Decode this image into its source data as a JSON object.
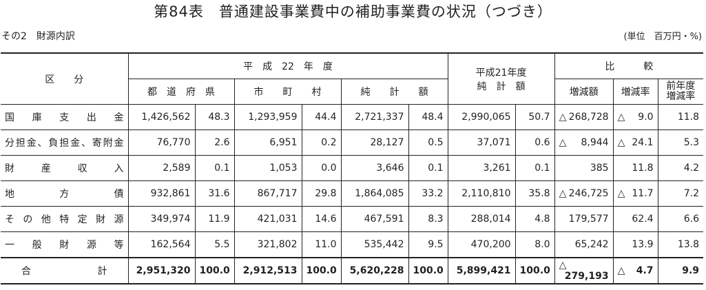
{
  "title": "第84表　普通建設事業費中の補助事業費の状況（つづき）",
  "subtitle": "その2　財源内訳",
  "unit": "(単位　百万円・%)",
  "headers": {
    "category": "区　　分",
    "h22": "平　成　22　年　度",
    "pref": "都　道　府　県",
    "muni": "市　　町　　村",
    "net": "純　　計　　額",
    "h21_line1": "平成21年度",
    "h21_line2": "純　計　額",
    "compare": "比　　　較",
    "diff": "増減額",
    "rate": "増減率",
    "prev_rate_line1": "前年度",
    "prev_rate_line2": "増減率"
  },
  "rows": [
    {
      "label": "国庫支出金",
      "pref_val": "1,426,562",
      "pref_pct": "48.3",
      "muni_val": "1,293,959",
      "muni_pct": "44.4",
      "net_val": "2,721,337",
      "net_pct": "48.4",
      "h21_val": "2,990,065",
      "h21_pct": "50.7",
      "diff_mark": "△",
      "diff_val": "268,728",
      "rate_mark": "△",
      "rate_val": "9.0",
      "prev_rate": "11.8"
    },
    {
      "label": "分担金、負担金、寄附金",
      "pref_val": "76,770",
      "pref_pct": "2.6",
      "muni_val": "6,951",
      "muni_pct": "0.2",
      "net_val": "28,127",
      "net_pct": "0.5",
      "h21_val": "37,071",
      "h21_pct": "0.6",
      "diff_mark": "△",
      "diff_val": "8,944",
      "rate_mark": "△",
      "rate_val": "24.1",
      "prev_rate": "5.3"
    },
    {
      "label": "財産収入",
      "pref_val": "2,589",
      "pref_pct": "0.1",
      "muni_val": "1,053",
      "muni_pct": "0.0",
      "net_val": "3,646",
      "net_pct": "0.1",
      "h21_val": "3,261",
      "h21_pct": "0.1",
      "diff_mark": "",
      "diff_val": "385",
      "rate_mark": "",
      "rate_val": "11.8",
      "prev_rate": "4.2"
    },
    {
      "label": "地方債",
      "pref_val": "932,861",
      "pref_pct": "31.6",
      "muni_val": "867,717",
      "muni_pct": "29.8",
      "net_val": "1,864,085",
      "net_pct": "33.2",
      "h21_val": "2,110,810",
      "h21_pct": "35.8",
      "diff_mark": "△",
      "diff_val": "246,725",
      "rate_mark": "△",
      "rate_val": "11.7",
      "prev_rate": "7.2"
    },
    {
      "label": "その他特定財源",
      "pref_val": "349,974",
      "pref_pct": "11.9",
      "muni_val": "421,031",
      "muni_pct": "14.6",
      "net_val": "467,591",
      "net_pct": "8.3",
      "h21_val": "288,014",
      "h21_pct": "4.8",
      "diff_mark": "",
      "diff_val": "179,577",
      "rate_mark": "",
      "rate_val": "62.4",
      "prev_rate": "6.6"
    },
    {
      "label": "一般財源等",
      "pref_val": "162,564",
      "pref_pct": "5.5",
      "muni_val": "321,802",
      "muni_pct": "11.0",
      "net_val": "535,442",
      "net_pct": "9.5",
      "h21_val": "470,200",
      "h21_pct": "8.0",
      "diff_mark": "",
      "diff_val": "65,242",
      "rate_mark": "",
      "rate_val": "13.9",
      "prev_rate": "13.8"
    }
  ],
  "total": {
    "label": "合計",
    "pref_val": "2,951,320",
    "pref_pct": "100.0",
    "muni_val": "2,912,513",
    "muni_pct": "100.0",
    "net_val": "5,620,228",
    "net_pct": "100.0",
    "h21_val": "5,899,421",
    "h21_pct": "100.0",
    "diff_mark": "△",
    "diff_val": "279,193",
    "rate_mark": "△",
    "rate_val": "4.7",
    "prev_rate": "9.9"
  }
}
